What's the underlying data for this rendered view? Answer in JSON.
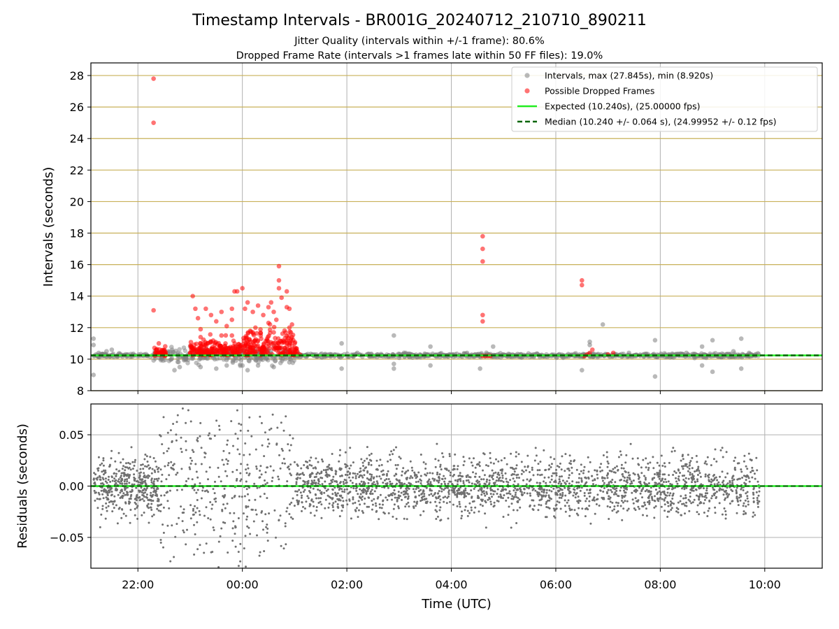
{
  "chart_data": [
    {
      "type": "scatter",
      "title": "Timestamp Intervals - BR001G_20240712_210710_890211",
      "subtitle_lines": [
        "Jitter Quality (intervals within +/-1 frame): 80.6%",
        "Dropped Frame Rate (intervals >1 frames late within 50 FF files): 19.0%"
      ],
      "xlabel": "",
      "ylabel": "Intervals (seconds)",
      "x_unit": "hours since 00:00 UTC",
      "xlim": [
        -2.9,
        11.1
      ],
      "ylim": [
        8,
        28.8
      ],
      "yticks": [
        "8",
        "10",
        "12",
        "14",
        "16",
        "18",
        "20",
        "22",
        "24",
        "26",
        "28"
      ],
      "xticks": [
        -2,
        0,
        2,
        4,
        6,
        8,
        10
      ],
      "grid": true,
      "legend_position": "top-right",
      "legend": [
        "Intervals, max (27.845s), min (8.920s)",
        "Possible Dropped Frames",
        "Expected (10.240s), (25.00000 fps)",
        "Median (10.240 +/- 0.064 s), (24.99952 +/- 0.12 fps)"
      ],
      "expected_interval": 10.24,
      "median_interval": 10.24,
      "x_data_start": -2.85,
      "x_data_end": 9.9,
      "series": [
        {
          "name": "Intervals, max (27.845s), min (8.920s)",
          "color": "#808080",
          "points": [
            [
              -2.85,
              9.0
            ],
            [
              -2.85,
              10.9
            ],
            [
              -2.85,
              11.3
            ],
            [
              -2.75,
              10.4
            ],
            [
              -2.6,
              10.5
            ],
            [
              -2.5,
              10.6
            ],
            [
              -1.3,
              9.3
            ],
            [
              -1.2,
              9.5
            ],
            [
              -1.0,
              10.8
            ],
            [
              -0.8,
              9.5
            ],
            [
              -0.5,
              9.4
            ],
            [
              -0.3,
              9.6
            ],
            [
              0.1,
              9.3
            ],
            [
              0.3,
              9.6
            ],
            [
              0.6,
              9.5
            ],
            [
              0.9,
              9.8
            ],
            [
              1.5,
              10.3
            ],
            [
              1.9,
              11.0
            ],
            [
              1.9,
              9.4
            ],
            [
              2.2,
              10.4
            ],
            [
              2.9,
              11.5
            ],
            [
              2.9,
              9.7
            ],
            [
              2.9,
              9.4
            ],
            [
              3.4,
              10.3
            ],
            [
              3.6,
              9.6
            ],
            [
              3.6,
              10.8
            ],
            [
              4.3,
              10.4
            ],
            [
              4.55,
              9.4
            ],
            [
              4.8,
              10.8
            ],
            [
              5.3,
              10.2
            ],
            [
              6.5,
              9.3
            ],
            [
              6.65,
              10.9
            ],
            [
              6.65,
              11.1
            ],
            [
              6.9,
              12.2
            ],
            [
              7.4,
              10.4
            ],
            [
              7.9,
              8.9
            ],
            [
              7.9,
              11.2
            ],
            [
              8.5,
              10.4
            ],
            [
              8.8,
              9.6
            ],
            [
              8.8,
              10.8
            ],
            [
              9.0,
              11.2
            ],
            [
              9.0,
              9.2
            ],
            [
              9.4,
              10.5
            ],
            [
              9.55,
              11.3
            ],
            [
              9.55,
              9.4
            ],
            [
              9.7,
              10.4
            ]
          ]
        },
        {
          "name": "Possible Dropped Frames",
          "color": "#ff0000",
          "points": [
            [
              -1.7,
              27.8
            ],
            [
              -1.7,
              25.0
            ],
            [
              -1.7,
              13.1
            ],
            [
              -1.6,
              11.0
            ],
            [
              -1.65,
              10.6
            ],
            [
              -1.55,
              10.4
            ],
            [
              -0.95,
              14.0
            ],
            [
              -0.9,
              13.2
            ],
            [
              -0.85,
              12.6
            ],
            [
              -0.8,
              11.9
            ],
            [
              -0.7,
              13.2
            ],
            [
              -0.6,
              12.8
            ],
            [
              -0.5,
              12.4
            ],
            [
              -0.4,
              13.0
            ],
            [
              -0.4,
              11.5
            ],
            [
              -0.3,
              12.1
            ],
            [
              -0.2,
              12.5
            ],
            [
              -0.2,
              13.2
            ],
            [
              -0.15,
              14.3
            ],
            [
              -0.1,
              14.3
            ],
            [
              0.0,
              14.5
            ],
            [
              0.05,
              13.2
            ],
            [
              0.1,
              13.6
            ],
            [
              0.2,
              13.0
            ],
            [
              0.25,
              12.0
            ],
            [
              0.3,
              13.4
            ],
            [
              0.4,
              12.8
            ],
            [
              0.5,
              13.3
            ],
            [
              0.5,
              12.3
            ],
            [
              0.55,
              13.6
            ],
            [
              0.6,
              13.0
            ],
            [
              0.65,
              12.5
            ],
            [
              0.7,
              15.9
            ],
            [
              0.7,
              15.0
            ],
            [
              0.7,
              14.5
            ],
            [
              0.75,
              13.9
            ],
            [
              0.85,
              14.3
            ],
            [
              0.85,
              13.3
            ],
            [
              0.9,
              13.2
            ],
            [
              0.9,
              12.0
            ],
            [
              0.95,
              12.2
            ],
            [
              0.95,
              11.4
            ],
            [
              -0.8,
              11.4
            ],
            [
              -0.6,
              11.1
            ],
            [
              -0.2,
              11.5
            ],
            [
              0.15,
              11.8
            ],
            [
              0.35,
              11.5
            ],
            [
              0.6,
              11.7
            ],
            [
              1.0,
              11.0
            ],
            [
              1.05,
              10.5
            ],
            [
              1.1,
              10.3
            ],
            [
              4.6,
              17.8
            ],
            [
              4.6,
              17.0
            ],
            [
              4.6,
              16.2
            ],
            [
              4.6,
              12.8
            ],
            [
              4.6,
              12.4
            ],
            [
              4.6,
              10.2
            ],
            [
              4.65,
              10.2
            ],
            [
              4.7,
              10.2
            ],
            [
              4.75,
              10.2
            ],
            [
              6.5,
              15.0
            ],
            [
              6.5,
              14.7
            ],
            [
              6.55,
              10.2
            ],
            [
              6.6,
              10.3
            ],
            [
              6.65,
              10.4
            ],
            [
              6.7,
              10.6
            ],
            [
              7.0,
              10.3
            ],
            [
              7.1,
              10.4
            ]
          ]
        }
      ]
    },
    {
      "type": "scatter",
      "title": "",
      "xlabel": "Time (UTC)",
      "ylabel": "Residuals (seconds)",
      "x_unit": "hours since 00:00 UTC",
      "xlim": [
        -2.9,
        11.1
      ],
      "ylim": [
        -0.08,
        0.08
      ],
      "yticks": [
        {
          "value": 0.05,
          "label": "0.05"
        },
        {
          "value": 0.0,
          "label": "0.00"
        },
        {
          "value": -0.05,
          "label": "−0.05"
        }
      ],
      "xticks": [
        {
          "value": -2,
          "label": "22:00"
        },
        {
          "value": 0,
          "label": "00:00"
        },
        {
          "value": 2,
          "label": "02:00"
        },
        {
          "value": 4,
          "label": "04:00"
        },
        {
          "value": 6,
          "label": "06:00"
        },
        {
          "value": 8,
          "label": "08:00"
        },
        {
          "value": 10,
          "label": "10:00"
        }
      ],
      "grid": true,
      "reference_value": 0.0,
      "series": [
        {
          "name": "",
          "color": "#808080",
          "density_segments": [
            {
              "x_range": [
                -2.85,
                -1.6
              ],
              "spread": 0.014,
              "count": 420
            },
            {
              "x_range": [
                -1.6,
                1.0
              ],
              "spread": 0.035,
              "count": 380
            },
            {
              "x_range": [
                1.0,
                9.9
              ],
              "spread": 0.014,
              "count": 2100
            }
          ]
        }
      ]
    }
  ],
  "colors": {
    "axes_text": "#000000",
    "grid": "#b0b0b0",
    "horizontal_grid_top": "#c8b058",
    "expected_line": "#22ee22",
    "median_line": "#006400"
  }
}
